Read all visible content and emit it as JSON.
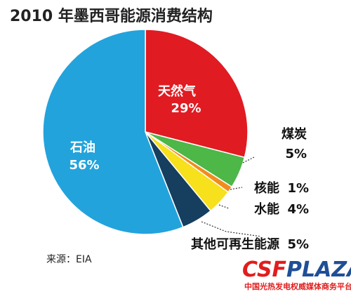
{
  "chart_data": {
    "type": "pie",
    "title": "2010 年墨西哥能源消费结构",
    "slices": [
      {
        "name": "天然气",
        "value": 29,
        "pct_label": "29%",
        "color": "#e01b22"
      },
      {
        "name": "煤炭",
        "value": 5,
        "pct_label": "5%",
        "color": "#4db748"
      },
      {
        "name": "核能",
        "value": 1,
        "pct_label": "1%",
        "color": "#f28c1c"
      },
      {
        "name": "水能",
        "value": 4,
        "pct_label": "4%",
        "color": "#f7e01c"
      },
      {
        "name": "其他可再生能源",
        "value": 5,
        "pct_label": "5%",
        "color": "#163e5e"
      },
      {
        "name": "石油",
        "value": 56,
        "pct_label": "56%",
        "color": "#23a3dc"
      }
    ]
  },
  "source": "来源：EIA",
  "watermark": {
    "brand_a": "CSF",
    "brand_b": "PLAZA",
    "subtitle": "中国光热发电权威媒体商务平台",
    "accent": "#e11d1d",
    "secondary": "#1f4f96"
  }
}
